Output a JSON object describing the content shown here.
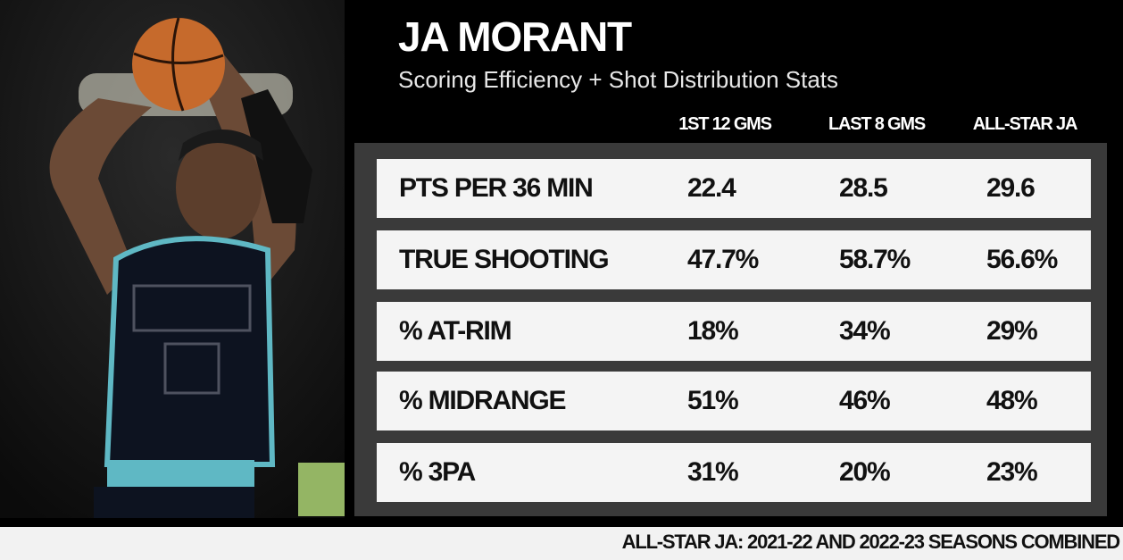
{
  "header": {
    "title": "JA MORANT",
    "subtitle": "Scoring Efficiency + Shot Distribution Stats"
  },
  "table": {
    "columns": [
      "1ST 12 GMS",
      "LAST 8 GMS",
      "ALL-STAR JA"
    ],
    "rows": [
      [
        "PTS PER 36 MIN",
        "22.4",
        "28.5",
        "29.6"
      ],
      [
        "TRUE SHOOTING",
        "47.7%",
        "58.7%",
        "56.6%"
      ],
      [
        "% AT-RIM",
        "18%",
        "34%",
        "29%"
      ],
      [
        "% MIDRANGE",
        "51%",
        "46%",
        "48%"
      ],
      [
        "% 3PA",
        "31%",
        "20%",
        "23%"
      ]
    ]
  },
  "footer": {
    "note": "ALL-STAR JA: 2021-22 AND 2022-23 SEASONS COMBINED"
  }
}
